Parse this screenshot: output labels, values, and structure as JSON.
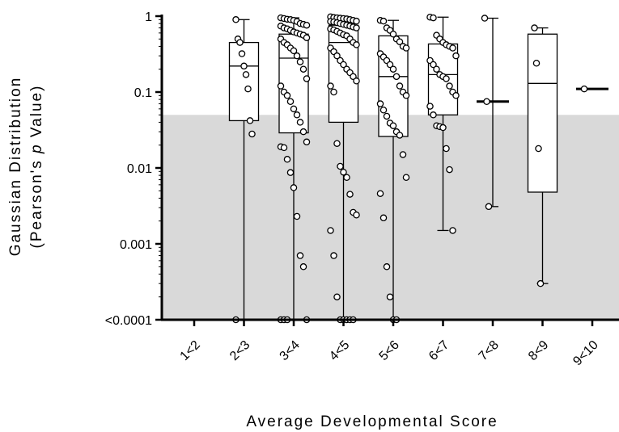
{
  "chart_data": {
    "type": "box",
    "title": "",
    "xlabel": "Average Developmental Score",
    "ylabel_line1": "Gaussian Distribution",
    "ylabel_line2_prefix": "(Pearson's ",
    "ylabel_line2_italic": "p",
    "ylabel_line2_suffix": " Value)",
    "yscale": "log",
    "ylim": [
      0.0001,
      1
    ],
    "y_ticks": [
      {
        "value": 1,
        "label": "1"
      },
      {
        "value": 0.1,
        "label": "0.1"
      },
      {
        "value": 0.01,
        "label": "0.01"
      },
      {
        "value": 0.001,
        "label": "0.001"
      },
      {
        "value": 0.0001,
        "label": "<0.0001"
      }
    ],
    "shaded_region": {
      "from": 0.0001,
      "to": 0.05,
      "color": "#d9d9d9"
    },
    "categories": [
      "1<2",
      "2<3",
      "3<4",
      "4<5",
      "5<6",
      "6<7",
      "7<8",
      "8<9",
      "9<10"
    ],
    "boxes": [
      {
        "category": "1<2",
        "min": 0.0001,
        "q1": 0.0001,
        "median": 0.0001,
        "q3": 0.0001,
        "max": 0.0001,
        "points": []
      },
      {
        "category": "2<3",
        "min": 0.0001,
        "q1": 0.042,
        "median": 0.22,
        "q3": 0.45,
        "max": 0.9,
        "points": [
          0.9,
          0.5,
          0.45,
          0.32,
          0.22,
          0.17,
          0.11,
          0.042,
          0.028,
          0.0001
        ]
      },
      {
        "category": "3<4",
        "min": 0.0001,
        "q1": 0.029,
        "median": 0.28,
        "q3": 0.58,
        "max": 0.95,
        "points": [
          0.95,
          0.93,
          0.91,
          0.9,
          0.88,
          0.85,
          0.8,
          0.78,
          0.76,
          0.74,
          0.7,
          0.68,
          0.65,
          0.62,
          0.6,
          0.58,
          0.56,
          0.52,
          0.5,
          0.45,
          0.42,
          0.38,
          0.35,
          0.3,
          0.25,
          0.2,
          0.15,
          0.12,
          0.1,
          0.09,
          0.075,
          0.06,
          0.05,
          0.04,
          0.03,
          0.022,
          0.019,
          0.0185,
          0.013,
          0.0087,
          0.0055,
          0.0023,
          0.0007,
          0.0005,
          0.0001,
          0.0001,
          0.0001,
          0.0001
        ]
      },
      {
        "category": "4<5",
        "min": 0.0001,
        "q1": 0.04,
        "median": 0.45,
        "q3": 0.76,
        "max": 0.98,
        "points": [
          0.98,
          0.96,
          0.95,
          0.94,
          0.93,
          0.92,
          0.9,
          0.88,
          0.86,
          0.85,
          0.84,
          0.82,
          0.8,
          0.78,
          0.76,
          0.74,
          0.72,
          0.7,
          0.68,
          0.66,
          0.63,
          0.6,
          0.57,
          0.55,
          0.5,
          0.45,
          0.42,
          0.38,
          0.34,
          0.3,
          0.26,
          0.23,
          0.2,
          0.18,
          0.16,
          0.14,
          0.12,
          0.1,
          0.021,
          0.0105,
          0.0088,
          0.0075,
          0.0045,
          0.0026,
          0.0024,
          0.0015,
          0.0007,
          0.0002,
          0.0001,
          0.0001,
          0.0001,
          0.0001,
          0.0001
        ]
      },
      {
        "category": "5<6",
        "min": 0.0001,
        "q1": 0.026,
        "median": 0.16,
        "q3": 0.55,
        "max": 0.88,
        "points": [
          0.88,
          0.86,
          0.7,
          0.65,
          0.58,
          0.5,
          0.46,
          0.4,
          0.38,
          0.32,
          0.29,
          0.26,
          0.23,
          0.2,
          0.16,
          0.12,
          0.1,
          0.09,
          0.07,
          0.058,
          0.048,
          0.039,
          0.036,
          0.03,
          0.027,
          0.015,
          0.0075,
          0.0046,
          0.0022,
          0.0005,
          0.0002,
          0.0001,
          0.0001
        ]
      },
      {
        "category": "6<7",
        "min": 0.0015,
        "q1": 0.05,
        "median": 0.17,
        "q3": 0.43,
        "max": 0.97,
        "points": [
          0.97,
          0.95,
          0.56,
          0.5,
          0.45,
          0.42,
          0.4,
          0.38,
          0.3,
          0.26,
          0.23,
          0.2,
          0.17,
          0.16,
          0.15,
          0.12,
          0.1,
          0.09,
          0.065,
          0.05,
          0.036,
          0.035,
          0.034,
          0.018,
          0.0095,
          0.0015
        ]
      },
      {
        "category": "7<8",
        "min": 0.0031,
        "q1": 0.075,
        "median": 0.075,
        "q3": 0.075,
        "max": 0.94,
        "points": [
          0.94,
          0.075,
          0.0031
        ]
      },
      {
        "category": "8<9",
        "min": 0.0003,
        "q1": 0.0048,
        "median": 0.13,
        "q3": 0.58,
        "max": 0.7,
        "points": [
          0.7,
          0.24,
          0.018,
          0.0003
        ]
      },
      {
        "category": "9<10",
        "min": 0.11,
        "q1": 0.11,
        "median": 0.11,
        "q3": 0.11,
        "max": 0.11,
        "points": [
          0.11
        ]
      }
    ]
  }
}
